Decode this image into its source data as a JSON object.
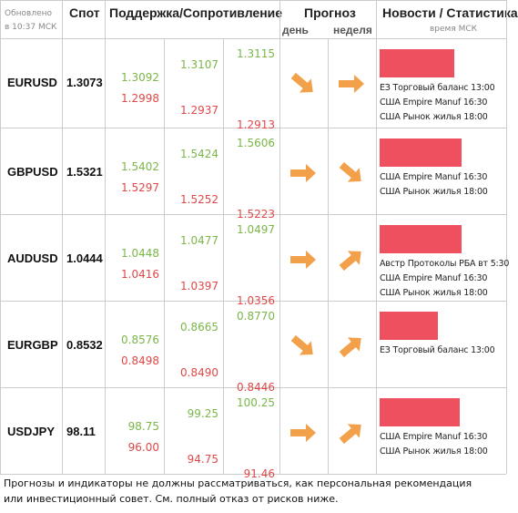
{
  "header": {
    "updated": [
      "Обновлено",
      "в 10:37 МСК"
    ],
    "spot": "Спот",
    "levels": "Поддержка/Сопротивление",
    "forecast": "Прогноз",
    "day": "день",
    "week": "неделя",
    "news": "Новости / Статистика",
    "news_time": "время МСК"
  },
  "rows": [
    {
      "pair": "EURUSD",
      "spot": "1.3073",
      "levels": [
        [
          "1.3092",
          "1.2998"
        ],
        [
          "1.3107",
          "1.2937"
        ],
        [
          "1.3115",
          "1.2913"
        ]
      ],
      "news": [
        "ЕЗ Торговый баланс 13:00",
        "США Empire Manuf 16:30",
        "США Рынок жилья 18:00"
      ]
    },
    {
      "pair": "GBPUSD",
      "spot": "1.5321",
      "levels": [
        [
          "1.5402",
          "1.5297"
        ],
        [
          "1.5424",
          "1.5252"
        ],
        [
          "1.5606",
          "1.5223"
        ]
      ],
      "news": [
        "США Empire Manuf 16:30",
        "США Рынок жилья 18:00"
      ]
    },
    {
      "pair": "AUDUSD",
      "spot": "1.0444",
      "levels": [
        [
          "1.0448",
          "1.0416"
        ],
        [
          "1.0477",
          "1.0397"
        ],
        [
          "1.0497",
          "1.0356"
        ]
      ],
      "news": [
        "Австр Протоколы РБА вт 5:30",
        "США Empire Manuf 16:30",
        "США Рынок жилья 18:00"
      ]
    },
    {
      "pair": "EURGBP",
      "spot": "0.8532",
      "levels": [
        [
          "0.8576",
          "0.8498"
        ],
        [
          "0.8665",
          "0.8490"
        ],
        [
          "0.8770",
          "0.8446"
        ]
      ],
      "news": [
        "ЕЗ Торговый баланс 13:00"
      ]
    },
    {
      "pair": "USDJPY",
      "spot": "98.11",
      "levels": [
        [
          "98.75",
          "96.00"
        ],
        [
          "99.25",
          "94.75"
        ],
        [
          "100.25",
          "91.46"
        ]
      ],
      "news": [
        "США Empire Manuf 16:30",
        "США Рынок жилья 18:00"
      ]
    }
  ],
  "footer": "Прогнозы и индикаторы не должны рассматриваться, как персональная рекомендация или инвестиционный совет. См. полный отказ от рисков ниже."
}
